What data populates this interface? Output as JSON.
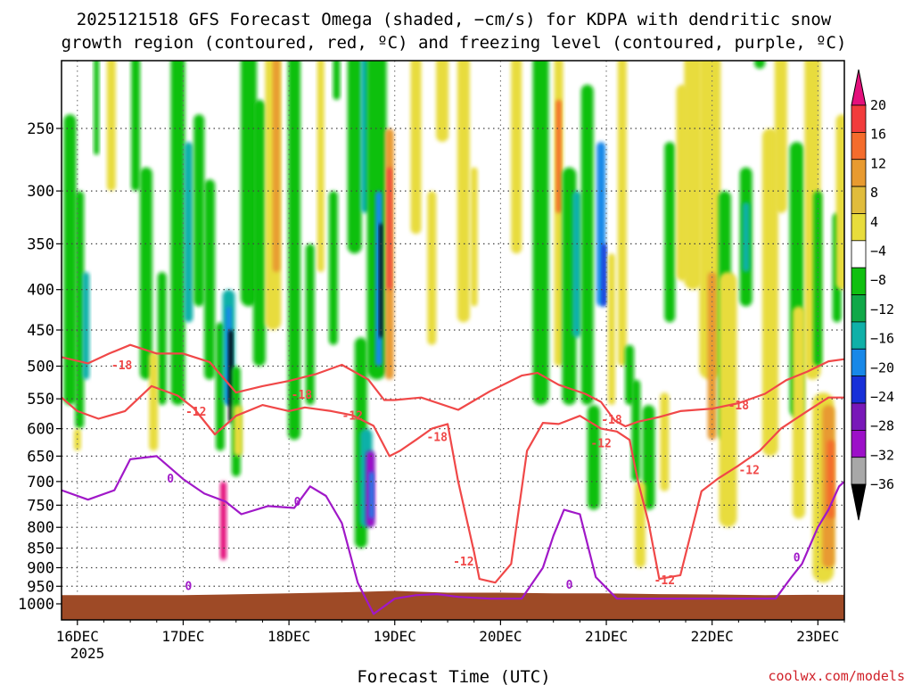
{
  "chart_data": {
    "type": "heatmap",
    "title_line1": "2025121518 GFS Forecast Omega (shaded, −cm/s) for KDPA with dendritic snow",
    "title_line2": "growth region (contoured, red, ºC) and freezing level (contoured, purple, ºC)",
    "xlabel": "Forecast Time (UTC)",
    "credit": "coolwx.com/models",
    "x_range_days": [
      -0.15,
      7.25
    ],
    "x_ticks": [
      {
        "day": 0,
        "label": "16DEC"
      },
      {
        "day": 1,
        "label": "17DEC"
      },
      {
        "day": 2,
        "label": "18DEC"
      },
      {
        "day": 3,
        "label": "19DEC"
      },
      {
        "day": 4,
        "label": "20DEC"
      },
      {
        "day": 5,
        "label": "21DEC"
      },
      {
        "day": 6,
        "label": "22DEC"
      },
      {
        "day": 7,
        "label": "23DEC"
      }
    ],
    "year_label": "2025",
    "y_levels": [
      "250",
      "300",
      "350",
      "400",
      "450",
      "500",
      "550",
      "600",
      "650",
      "700",
      "750",
      "800",
      "850",
      "900",
      "950",
      "1000"
    ],
    "colorbar": {
      "labels": [
        "20",
        "16",
        "12",
        "8",
        "4",
        "−4",
        "−8",
        "−12",
        "−16",
        "−20",
        "−24",
        "−28",
        "−32",
        "−36"
      ],
      "colors": [
        "#e4107c",
        "#f23c3c",
        "#f46c2c",
        "#e89a30",
        "#e0bc3c",
        "#e8dc3c",
        "#ffffff",
        "#10c010",
        "#10a848",
        "#10b0a8",
        "#1888e8",
        "#1830d8",
        "#7818b8",
        "#9c10c8",
        "#a8a8a8",
        "#000000"
      ],
      "colors_note": "top arrow, 16-20, 12-16, 8-12, 4-8 (light), 4-8, -4..4 white, -8..-4, -12..-8, -16..-12, -20..-16, -24..-20, -28..-24, -32..-28, -36..-32, bottom arrow"
    },
    "contour_labels_red": [
      {
        "text": "-18",
        "day": 0.42,
        "hpa": 498
      },
      {
        "text": "-12",
        "day": 1.12,
        "hpa": 570
      },
      {
        "text": "-18",
        "day": 2.12,
        "hpa": 543
      },
      {
        "text": "-12",
        "day": 2.6,
        "hpa": 577
      },
      {
        "text": "-18",
        "day": 3.4,
        "hpa": 614
      },
      {
        "text": "-12",
        "day": 3.65,
        "hpa": 883
      },
      {
        "text": "-18",
        "day": 5.05,
        "hpa": 584
      },
      {
        "text": "-12",
        "day": 4.95,
        "hpa": 625
      },
      {
        "text": "-12",
        "day": 5.55,
        "hpa": 932
      },
      {
        "text": "-18",
        "day": 6.25,
        "hpa": 560
      },
      {
        "text": "-12",
        "day": 6.35,
        "hpa": 676
      }
    ],
    "contour_labels_purple": [
      {
        "text": "0",
        "day": 0.88,
        "hpa": 693
      },
      {
        "text": "0",
        "day": 1.05,
        "hpa": 948
      },
      {
        "text": "0",
        "day": 2.08,
        "hpa": 741
      },
      {
        "text": "0",
        "day": 4.65,
        "hpa": 945
      },
      {
        "text": "0",
        "day": 6.8,
        "hpa": 872
      }
    ],
    "series": [
      {
        "name": "-18 C isotherm upper",
        "x": [
          -0.15,
          0.1,
          0.3,
          0.5,
          0.75,
          1.0,
          1.25,
          1.5,
          1.75,
          2.0,
          2.25,
          2.5,
          2.75,
          2.9,
          3.0,
          3.25,
          3.6,
          3.9,
          4.2,
          4.35,
          4.55,
          4.8,
          4.95,
          5.08,
          5.18,
          5.3,
          5.5,
          5.7,
          5.85,
          6.0,
          6.25,
          6.5,
          6.7,
          6.9,
          7.1,
          7.25
        ],
        "y": [
          487,
          496,
          482,
          470,
          482,
          482,
          494,
          540,
          530,
          522,
          512,
          498,
          520,
          552,
          552,
          548,
          568,
          538,
          514,
          510,
          528,
          542,
          555,
          586,
          596,
          588,
          580,
          570,
          568,
          566,
          557,
          542,
          521,
          508,
          493,
          490
        ]
      },
      {
        "name": "-12 C isotherm",
        "x": [
          -0.15,
          0.0,
          0.2,
          0.45,
          0.7,
          0.95,
          1.1,
          1.3,
          1.5,
          1.75,
          2.0,
          2.15,
          2.4,
          2.6,
          2.8,
          2.95,
          3.05,
          3.2,
          3.35,
          3.5,
          3.6,
          3.75,
          3.8,
          3.95,
          4.1,
          4.25,
          4.4,
          4.55,
          4.75,
          4.95,
          5.1,
          5.22,
          5.3,
          5.4,
          5.5,
          5.7,
          5.9,
          6.05,
          6.25,
          6.45,
          6.65,
          6.9,
          7.1,
          7.25
        ],
        "y": [
          548,
          570,
          583,
          570,
          530,
          545,
          565,
          610,
          578,
          560,
          570,
          564,
          570,
          577,
          595,
          650,
          640,
          620,
          600,
          592,
          700,
          860,
          930,
          940,
          890,
          640,
          590,
          592,
          578,
          600,
          605,
          620,
          700,
          790,
          930,
          920,
          720,
          695,
          668,
          640,
          600,
          570,
          548,
          548
        ]
      },
      {
        "name": "0 C freezing level",
        "x": [
          -0.15,
          0.1,
          0.35,
          0.5,
          0.75,
          1.0,
          1.2,
          1.4,
          1.55,
          1.8,
          2.05,
          2.2,
          2.35,
          2.5,
          2.65,
          2.8,
          3.0,
          3.2,
          3.4,
          3.6,
          3.9,
          4.2,
          4.4,
          4.5,
          4.6,
          4.75,
          4.9,
          5.1,
          5.4,
          5.7,
          6.0,
          6.3,
          6.6,
          6.75,
          6.85,
          7.0,
          7.1,
          7.2,
          7.25
        ],
        "y": [
          718,
          738,
          718,
          656,
          650,
          695,
          725,
          742,
          770,
          752,
          756,
          710,
          730,
          790,
          940,
          1030,
          985,
          975,
          972,
          980,
          985,
          985,
          900,
          820,
          760,
          770,
          925,
          985,
          985,
          985,
          985,
          985,
          985,
          925,
          890,
          800,
          760,
          710,
          700
        ]
      }
    ]
  }
}
